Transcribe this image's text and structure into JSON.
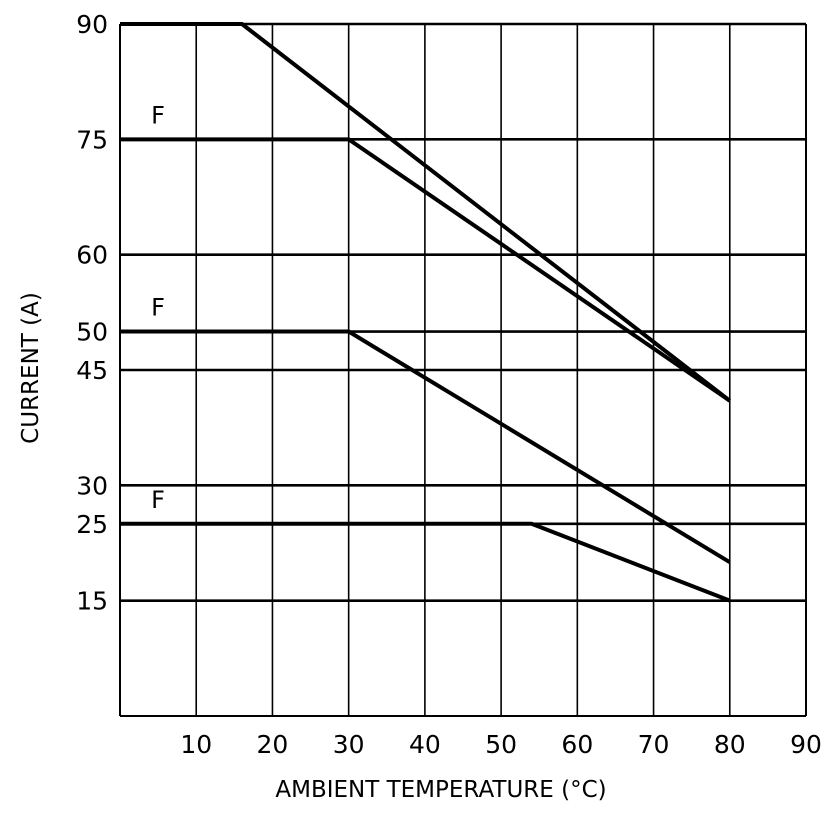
{
  "chart_data": {
    "type": "line",
    "title": "",
    "xlabel": "AMBIENT TEMPERATURE (°C)",
    "ylabel": "CURRENT (A)",
    "xlim": [
      0,
      90
    ],
    "ylim": [
      0,
      90
    ],
    "grid": true,
    "x_ticks": [
      "10",
      "20",
      "30",
      "40",
      "50",
      "60",
      "70",
      "80",
      "90"
    ],
    "y_ticks": [
      "15",
      "25",
      "30",
      "45",
      "50",
      "60",
      "75",
      "90"
    ],
    "series": [
      {
        "label_mark": "",
        "points": [
          [
            0,
            90
          ],
          [
            16,
            90
          ],
          [
            80,
            41
          ]
        ]
      },
      {
        "label_mark": "F",
        "points": [
          [
            0,
            75
          ],
          [
            30,
            75
          ],
          [
            80,
            41
          ]
        ]
      },
      {
        "label_mark": "F",
        "points": [
          [
            0,
            50
          ],
          [
            30,
            50
          ],
          [
            80,
            20
          ]
        ]
      },
      {
        "label_mark": "F",
        "points": [
          [
            0,
            25
          ],
          [
            54,
            25
          ],
          [
            80,
            15
          ]
        ]
      }
    ]
  }
}
